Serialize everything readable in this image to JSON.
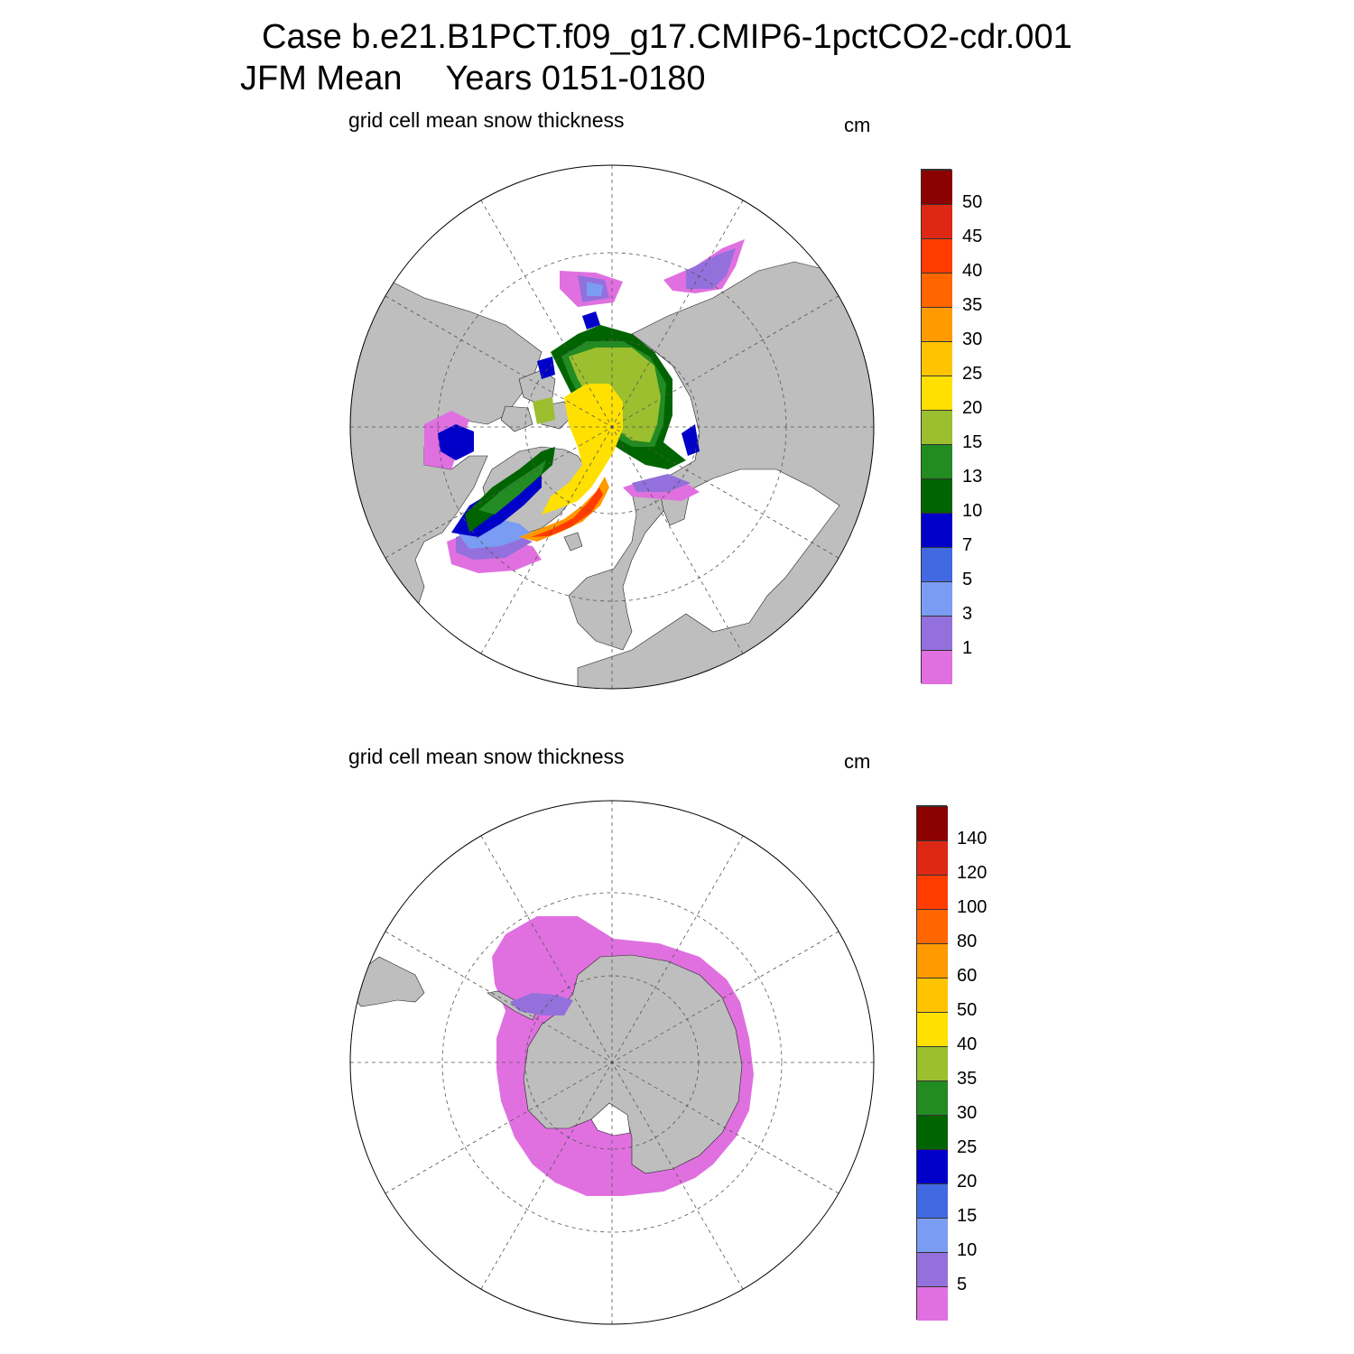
{
  "header": {
    "case_line": "Case b.e21.B1PCT.f09_g17.CMIP6-1pctCO2-cdr.001",
    "season": "JFM Mean",
    "years": "Years 0151-0180"
  },
  "colors": {
    "land": "#bebebe",
    "ocean": "#ffffff",
    "graticule": "#555555"
  },
  "panels": [
    {
      "id": "north",
      "title": "grid cell mean snow thickness",
      "units": "cm",
      "hemisphere": "NH",
      "colorbar": {
        "colors": [
          "#e070e0",
          "#9370db",
          "#7b9cf3",
          "#4169e1",
          "#0000c8",
          "#006400",
          "#228b22",
          "#9bbf2f",
          "#ffe000",
          "#ffc400",
          "#ff9a00",
          "#ff6600",
          "#ff3c00",
          "#dc2814",
          "#8b0000"
        ],
        "labels": [
          "1",
          "3",
          "5",
          "7",
          "10",
          "13",
          "15",
          "20",
          "25",
          "30",
          "35",
          "40",
          "45",
          "50"
        ]
      }
    },
    {
      "id": "south",
      "title": "grid cell mean snow thickness",
      "units": "cm",
      "hemisphere": "SH",
      "colorbar": {
        "colors": [
          "#e070e0",
          "#9370db",
          "#7b9cf3",
          "#4169e1",
          "#0000c8",
          "#006400",
          "#228b22",
          "#9bbf2f",
          "#ffe000",
          "#ffc400",
          "#ff9a00",
          "#ff6600",
          "#ff3c00",
          "#dc2814",
          "#8b0000"
        ],
        "labels": [
          "5",
          "10",
          "15",
          "20",
          "25",
          "30",
          "35",
          "40",
          "50",
          "60",
          "80",
          "100",
          "120",
          "140"
        ]
      }
    }
  ]
}
